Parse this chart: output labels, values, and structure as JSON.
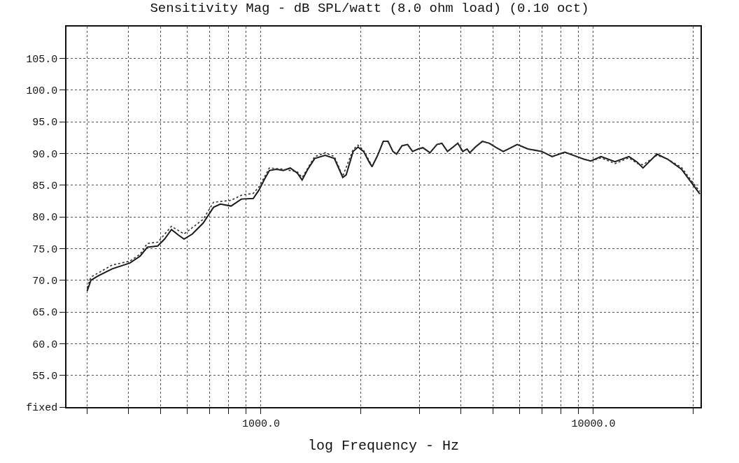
{
  "chart_data": {
    "type": "line",
    "title": "Sensitivity Mag - dB SPL/watt (8.0 ohm load) (0.10 oct)",
    "xlabel": "log Frequency - Hz",
    "log": "x",
    "grid": true,
    "xlim": [
      260,
      21000
    ],
    "xticks": [
      {
        "value": 300,
        "label": null
      },
      {
        "value": 400,
        "label": null
      },
      {
        "value": 500,
        "label": null
      },
      {
        "value": 600,
        "label": null
      },
      {
        "value": 700,
        "label": null
      },
      {
        "value": 800,
        "label": null
      },
      {
        "value": 900,
        "label": null
      },
      {
        "value": 1000,
        "label": "1000.0"
      },
      {
        "value": 2000,
        "label": null
      },
      {
        "value": 3000,
        "label": null
      },
      {
        "value": 4000,
        "label": null
      },
      {
        "value": 5000,
        "label": null
      },
      {
        "value": 6000,
        "label": null
      },
      {
        "value": 7000,
        "label": null
      },
      {
        "value": 8000,
        "label": null
      },
      {
        "value": 9000,
        "label": null
      },
      {
        "value": 10000,
        "label": "10000.0"
      },
      {
        "value": 20000,
        "label": null
      }
    ],
    "ylim": [
      50,
      110
    ],
    "yticks": [
      {
        "value": 50,
        "label": "fixed"
      },
      {
        "value": 55,
        "label": "55.0"
      },
      {
        "value": 60,
        "label": "60.0"
      },
      {
        "value": 65,
        "label": "65.0"
      },
      {
        "value": 70,
        "label": "70.0"
      },
      {
        "value": 75,
        "label": "75.0"
      },
      {
        "value": 80,
        "label": "80.0"
      },
      {
        "value": 85,
        "label": "85.0"
      },
      {
        "value": 90,
        "label": "90.0"
      },
      {
        "value": 95,
        "label": "95.0"
      },
      {
        "value": 100,
        "label": "100.0"
      },
      {
        "value": 105,
        "label": "105.0"
      }
    ],
    "series": [
      {
        "color": "#1a1a1a",
        "line_style": "solid",
        "x": [
          300,
          308,
          324,
          357,
          403,
          433,
          455,
          489,
          513,
          538,
          565,
          587,
          622,
          670,
          720,
          755,
          813,
          873,
          948,
          986,
          1024,
          1060,
          1112,
          1168,
          1225,
          1286,
          1330,
          1383,
          1451,
          1560,
          1663,
          1719,
          1762,
          1804,
          1893,
          1959,
          2036,
          2117,
          2159,
          2244,
          2333,
          2411,
          2495,
          2558,
          2655,
          2761,
          2858,
          2972,
          3070,
          3224,
          3384,
          3502,
          3640,
          3784,
          3910,
          4047,
          4168,
          4246,
          4416,
          4634,
          4864,
          5105,
          5358,
          5902,
          6353,
          6998,
          7516,
          8203,
          8913,
          9354,
          9817,
          10544,
          11614,
          12794,
          13557,
          14098,
          15531,
          16711,
          18408,
          19780,
          20900
        ],
        "values": [
          68.3,
          70.0,
          70.7,
          71.8,
          72.7,
          73.8,
          75.2,
          75.4,
          76.5,
          78.0,
          77.1,
          76.5,
          77.3,
          79.0,
          81.5,
          82.0,
          81.7,
          82.8,
          82.9,
          84.2,
          85.9,
          87.3,
          87.5,
          87.3,
          87.7,
          86.9,
          85.8,
          87.5,
          89.2,
          89.7,
          89.2,
          87.5,
          86.2,
          86.6,
          90.3,
          91.0,
          90.3,
          88.6,
          87.9,
          89.7,
          91.9,
          91.9,
          90.3,
          89.9,
          91.2,
          91.4,
          90.3,
          90.7,
          90.9,
          90.1,
          91.4,
          91.6,
          90.3,
          91.0,
          91.6,
          90.3,
          90.7,
          90.1,
          91.0,
          91.9,
          91.6,
          90.9,
          90.3,
          91.4,
          90.7,
          90.3,
          89.5,
          90.2,
          89.5,
          89.1,
          88.8,
          89.5,
          88.7,
          89.5,
          88.6,
          87.7,
          89.9,
          89.1,
          87.5,
          85.3,
          83.6
        ]
      },
      {
        "color": "#333333",
        "line_style": "dotted",
        "x": [
          300,
          308,
          357,
          403,
          433,
          455,
          489,
          538,
          587,
          670,
          720,
          813,
          873,
          948,
          986,
          1060,
          1168,
          1286,
          1330,
          1451,
          1560,
          1663,
          1762,
          1893,
          1959,
          2036,
          2159,
          2244,
          2333,
          2411,
          2495,
          2558,
          2655,
          2761,
          2858,
          2972,
          3070,
          3224,
          3384,
          3502,
          3640,
          3784,
          3910,
          4047,
          4168,
          4246,
          4416,
          4634,
          4864,
          5105,
          5358,
          5902,
          6353,
          6998,
          7516,
          8203,
          8913,
          9354,
          9817,
          10544,
          11614,
          12794,
          13557,
          14098,
          15531,
          16711,
          18408,
          19780,
          20900
        ],
        "values": [
          68.8,
          70.5,
          72.4,
          73.0,
          74.1,
          75.8,
          76.0,
          78.5,
          77.3,
          79.6,
          82.3,
          82.6,
          83.4,
          83.7,
          84.7,
          87.7,
          87.5,
          87.1,
          86.2,
          89.5,
          90.1,
          89.5,
          86.4,
          90.6,
          91.3,
          90.5,
          88.0,
          89.7,
          91.9,
          91.9,
          90.3,
          89.9,
          91.2,
          91.4,
          90.3,
          90.7,
          90.9,
          90.1,
          91.4,
          91.6,
          90.3,
          91.0,
          91.6,
          90.3,
          90.7,
          90.1,
          91.0,
          91.9,
          91.6,
          90.9,
          90.3,
          91.4,
          90.7,
          90.3,
          89.5,
          90.2,
          89.5,
          89.1,
          88.8,
          89.3,
          88.4,
          89.3,
          88.4,
          88.2,
          89.7,
          89.1,
          87.8,
          85.6,
          84.0
        ]
      }
    ]
  }
}
